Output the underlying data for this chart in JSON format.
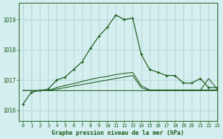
{
  "title": "Graphe pression niveau de la mer (hPa)",
  "bg_color": "#d5eef0",
  "grid_color": "#b8d8da",
  "line_color": "#1a5c1a",
  "xlim": [
    -0.5,
    23
  ],
  "ylim": [
    1015.65,
    1019.55
  ],
  "yticks": [
    1016,
    1017,
    1018,
    1019
  ],
  "xticks": [
    0,
    1,
    2,
    3,
    4,
    5,
    6,
    7,
    8,
    9,
    10,
    11,
    12,
    13,
    14,
    15,
    16,
    17,
    18,
    19,
    20,
    21,
    22,
    23
  ],
  "series_main": [
    1016.2,
    1016.6,
    1016.65,
    1016.7,
    1017.0,
    1017.1,
    1017.35,
    1017.6,
    1018.05,
    1018.45,
    1018.75,
    1019.15,
    1019.0,
    1019.05,
    1017.85,
    1017.35,
    1017.25,
    1017.15,
    1017.15,
    1016.9,
    1016.9,
    1017.05,
    1016.75,
    1016.75
  ],
  "series_flat1": [
    1016.65,
    1016.65,
    1016.65,
    1016.65,
    1016.65,
    1016.65,
    1016.65,
    1016.65,
    1016.65,
    1016.65,
    1016.65,
    1016.65,
    1016.65,
    1016.65,
    1016.65,
    1016.65,
    1016.65,
    1016.65,
    1016.65,
    1016.65,
    1016.65,
    1016.65,
    1017.05,
    1016.7
  ],
  "series_rise1": [
    1016.65,
    1016.65,
    1016.65,
    1016.65,
    1016.7,
    1016.75,
    1016.8,
    1016.85,
    1016.9,
    1016.95,
    1017.0,
    1017.05,
    1017.1,
    1017.15,
    1016.75,
    1016.65,
    1016.65,
    1016.65,
    1016.65,
    1016.65,
    1016.65,
    1016.65,
    1016.65,
    1016.65
  ],
  "series_rise2": [
    1016.65,
    1016.65,
    1016.65,
    1016.65,
    1016.75,
    1016.82,
    1016.88,
    1016.95,
    1017.02,
    1017.08,
    1017.12,
    1017.18,
    1017.22,
    1017.25,
    1016.82,
    1016.67,
    1016.67,
    1016.67,
    1016.67,
    1016.67,
    1016.67,
    1016.67,
    1016.67,
    1016.67
  ]
}
